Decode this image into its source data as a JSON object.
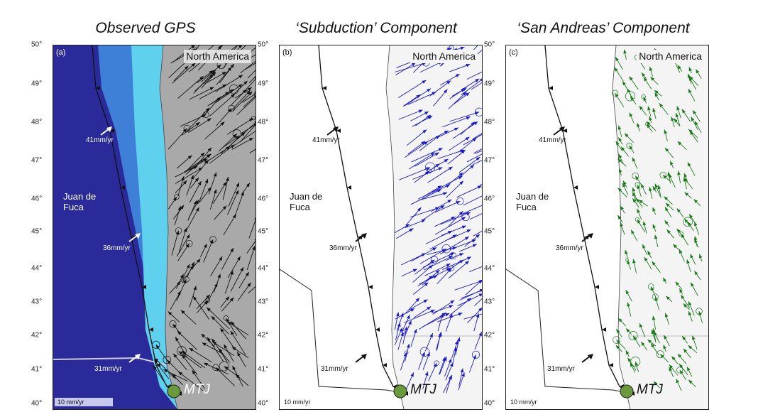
{
  "titles": [
    "Observed GPS",
    "‘Subduction’ Component",
    "‘San Andreas’ Component"
  ],
  "latitudes": [
    "50°",
    "49°",
    "48°",
    "47°",
    "46°",
    "45°",
    "44°",
    "43°",
    "42°",
    "41°",
    "40°"
  ],
  "panels": [
    {
      "tag": "(a)",
      "vector_color": "#111111",
      "plate_label": "Juan de Fuca",
      "north_america": "North America",
      "rates": [
        "41mm/yr",
        "36mm/yr",
        "31mm/yr"
      ],
      "mtj": "MTJ",
      "scale": "10 mm/yr"
    },
    {
      "tag": "(b)",
      "vector_color": "#1a1acc",
      "plate_label": "Juan de Fuca",
      "north_america": "North America",
      "rates": [
        "41mm/yr",
        "36mm/yr",
        "31mm/yr"
      ],
      "mtj": "MTJ",
      "scale": "10 mm/yr"
    },
    {
      "tag": "(c)",
      "vector_color": "#1a7a1a",
      "plate_label": "Juan de Fuca",
      "north_america": "North America",
      "rates": [
        "41mm/yr",
        "36mm/yr",
        "31mm/yr"
      ],
      "mtj": "MTJ",
      "scale": "10 mm/yr"
    }
  ],
  "colors": {
    "mtj": "#6a9a3c",
    "ocean_deep": "#2a2a9a",
    "shelf": "#5fd0ee"
  }
}
